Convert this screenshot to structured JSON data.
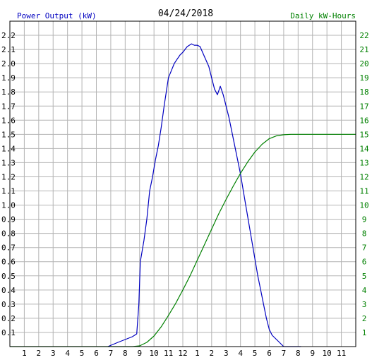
{
  "colors": {
    "power": "#0000c0",
    "energy": "#008000",
    "grid": "#b4b4b4",
    "axis": "#000000",
    "text": "#000000"
  },
  "chart_data": {
    "type": "line",
    "title": "04/24/2018",
    "left_axis_label": "Power Output (kW)",
    "right_axis_label": "Daily kW-Hours",
    "x_tick_labels": [
      "1",
      "2",
      "3",
      "4",
      "5",
      "6",
      "7",
      "8",
      "9",
      "10",
      "11",
      "12",
      "1",
      "2",
      "3",
      "4",
      "5",
      "6",
      "7",
      "8",
      "9",
      "10",
      "11"
    ],
    "x_range_hours": [
      0,
      24
    ],
    "y_left_range": [
      0,
      2.3
    ],
    "y_left_ticks": [
      "0.1",
      "0.2",
      "0.3",
      "0.4",
      "0.5",
      "0.6",
      "0.7",
      "0.8",
      "0.9",
      "1.0",
      "1.1",
      "1.2",
      "1.3",
      "1.4",
      "1.5",
      "1.6",
      "1.7",
      "1.8",
      "1.9",
      "2.0",
      "2.1",
      "2.2"
    ],
    "y_right_range": [
      0,
      23
    ],
    "y_right_ticks": [
      "1",
      "2",
      "3",
      "4",
      "5",
      "6",
      "7",
      "8",
      "9",
      "10",
      "11",
      "12",
      "13",
      "14",
      "15",
      "16",
      "17",
      "18",
      "19",
      "20",
      "21",
      "22"
    ],
    "grid": true,
    "series": [
      {
        "name": "Power Output (kW)",
        "axis": "left",
        "x": [
          6.8,
          7.5,
          8.0,
          8.5,
          8.8,
          8.95,
          9.05,
          9.3,
          9.5,
          9.7,
          9.9,
          10.1,
          10.3,
          10.5,
          10.7,
          11.0,
          11.2,
          11.4,
          11.6,
          11.8,
          12.0,
          12.3,
          12.6,
          12.8,
          13.0,
          13.2,
          13.5,
          13.8,
          14.0,
          14.2,
          14.4,
          14.6,
          14.8,
          15.0,
          15.2,
          15.4,
          15.6,
          15.8,
          16.0,
          16.2,
          16.4,
          16.6,
          16.8,
          17.0,
          17.2,
          17.4,
          17.6,
          17.8,
          18.0,
          18.2,
          18.4,
          18.6,
          18.8,
          19.0,
          19.3,
          19.6,
          20.0,
          20.2
        ],
        "y": [
          0.0,
          0.03,
          0.05,
          0.07,
          0.09,
          0.3,
          0.6,
          0.75,
          0.9,
          1.1,
          1.2,
          1.32,
          1.42,
          1.55,
          1.7,
          1.9,
          1.95,
          2.0,
          2.03,
          2.06,
          2.08,
          2.12,
          2.14,
          2.13,
          2.13,
          2.12,
          2.05,
          1.98,
          1.9,
          1.82,
          1.78,
          1.84,
          1.78,
          1.7,
          1.62,
          1.52,
          1.42,
          1.32,
          1.22,
          1.1,
          0.98,
          0.86,
          0.74,
          0.62,
          0.5,
          0.4,
          0.3,
          0.2,
          0.12,
          0.08,
          0.06,
          0.04,
          0.02,
          0.0,
          0.0,
          0.0,
          0.0,
          0.0
        ]
      },
      {
        "name": "Daily kW-Hours",
        "axis": "right",
        "x": [
          0.0,
          8.5,
          9.0,
          9.5,
          10.0,
          10.5,
          11.0,
          11.5,
          12.0,
          12.5,
          13.0,
          13.5,
          14.0,
          14.5,
          15.0,
          15.5,
          16.0,
          16.5,
          17.0,
          17.5,
          18.0,
          18.5,
          19.0,
          19.5,
          20.0,
          21.0,
          22.0,
          23.0,
          24.0
        ],
        "y": [
          0.0,
          0.0,
          0.05,
          0.3,
          0.75,
          1.4,
          2.2,
          3.05,
          4.0,
          5.0,
          6.1,
          7.2,
          8.3,
          9.4,
          10.4,
          11.35,
          12.25,
          13.05,
          13.75,
          14.3,
          14.7,
          14.9,
          14.97,
          15.0,
          15.0,
          15.0,
          15.0,
          15.0,
          15.0
        ]
      }
    ]
  }
}
